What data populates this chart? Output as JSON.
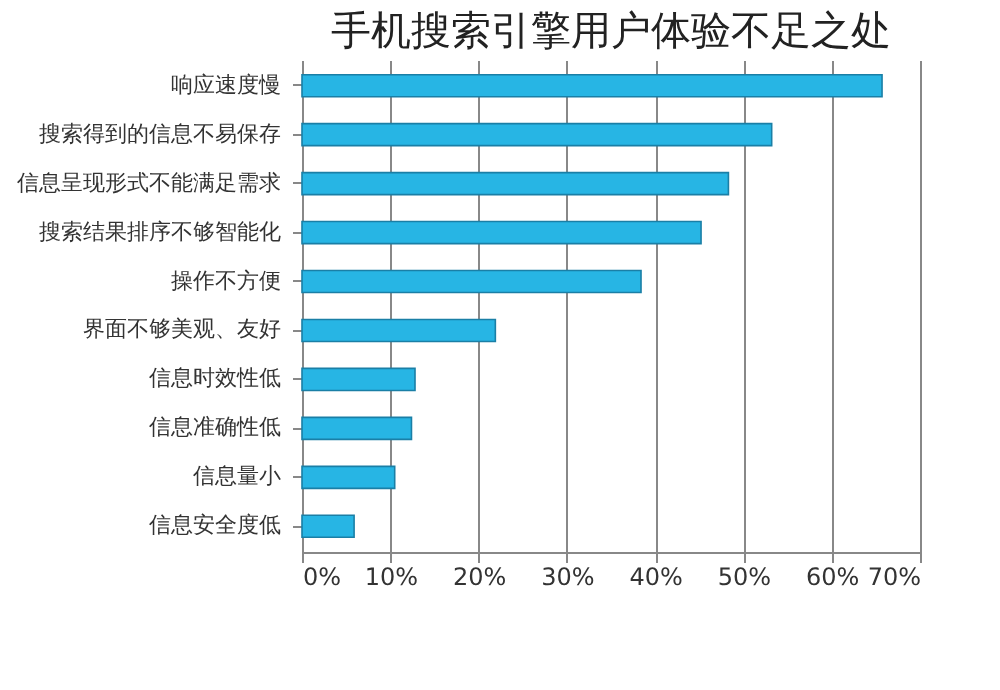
{
  "chart_data": {
    "type": "bar",
    "orientation": "horizontal",
    "title": "手机搜索引擎用户体验不足之处",
    "categories": [
      "响应速度慢",
      "搜索得到的信息不易保存",
      "信息呈现形式不能满足需求",
      "搜索结果排序不够智能化",
      "操作不方便",
      "界面不够美观、友好",
      "信息时效性低",
      "信息准确性低",
      "信息量小",
      "信息安全度低"
    ],
    "values": [
      65.7,
      53.2,
      48.3,
      45.2,
      38.4,
      21.9,
      12.8,
      12.4,
      10.5,
      5.9
    ],
    "color": "#27b5e4",
    "xlim": [
      0,
      70
    ],
    "xticks": [
      {
        "value": 0,
        "label": "0%"
      },
      {
        "value": 10,
        "label": "10%"
      },
      {
        "value": 20,
        "label": "20%"
      },
      {
        "value": 30,
        "label": "30%"
      },
      {
        "value": 40,
        "label": "40%"
      },
      {
        "value": 50,
        "label": "50%"
      },
      {
        "value": 60,
        "label": "60%"
      },
      {
        "value": 70,
        "label": "70%"
      }
    ],
    "grid": "x"
  }
}
